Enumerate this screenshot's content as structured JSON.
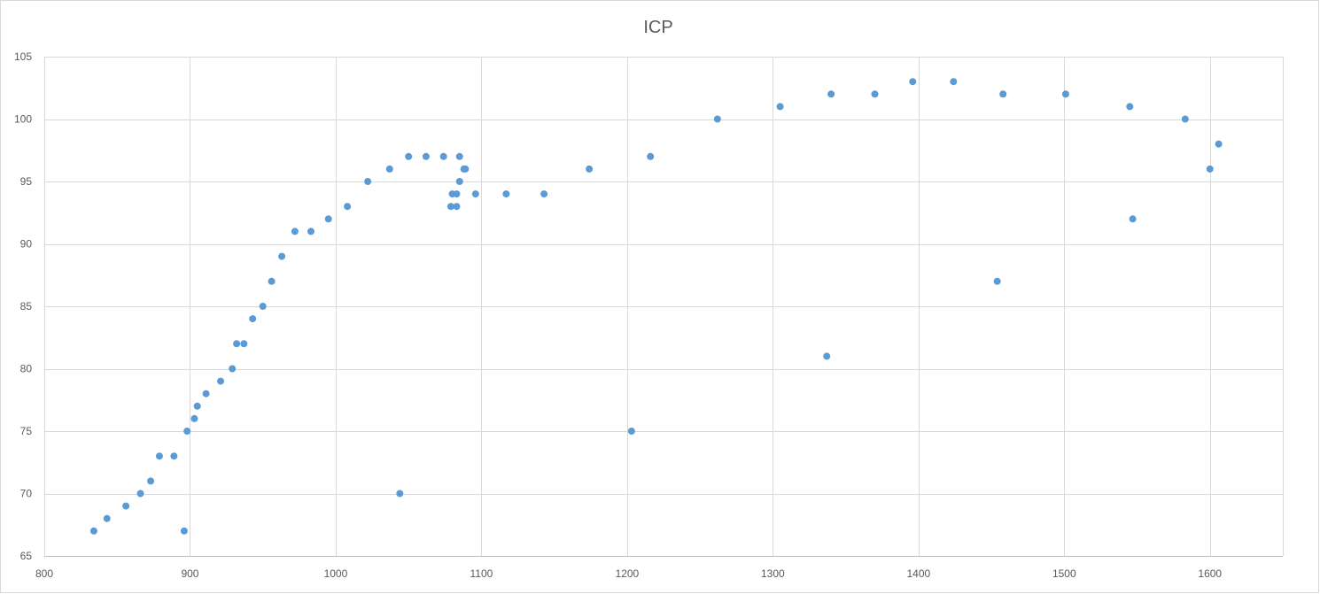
{
  "chart_data": {
    "type": "scatter",
    "title": "ICP",
    "xlabel": "",
    "ylabel": "",
    "xlim": [
      800,
      1650
    ],
    "ylim": [
      65,
      105
    ],
    "x_ticks": [
      800,
      900,
      1000,
      1100,
      1200,
      1300,
      1400,
      1500,
      1600
    ],
    "y_ticks": [
      65,
      70,
      75,
      80,
      85,
      90,
      95,
      100,
      105
    ],
    "grid": true,
    "legend": "none",
    "marker_color": "#5b9bd5",
    "series": [
      {
        "points": [
          [
            834,
            67
          ],
          [
            843,
            68
          ],
          [
            856,
            69
          ],
          [
            866,
            70
          ],
          [
            873,
            71
          ],
          [
            879,
            73
          ],
          [
            889,
            73
          ],
          [
            896,
            67
          ],
          [
            898,
            75
          ],
          [
            903,
            76
          ],
          [
            905,
            77
          ],
          [
            911,
            78
          ],
          [
            921,
            79
          ],
          [
            929,
            80
          ],
          [
            932,
            82
          ],
          [
            937,
            82
          ],
          [
            943,
            84
          ],
          [
            950,
            85
          ],
          [
            956,
            87
          ],
          [
            963,
            89
          ],
          [
            972,
            91
          ],
          [
            983,
            91
          ],
          [
            995,
            92
          ],
          [
            1008,
            93
          ],
          [
            1022,
            95
          ],
          [
            1037,
            96
          ],
          [
            1044,
            70
          ],
          [
            1050,
            97
          ],
          [
            1062,
            97
          ],
          [
            1074,
            97
          ],
          [
            1079,
            93
          ],
          [
            1080,
            94
          ],
          [
            1083,
            93
          ],
          [
            1083,
            94
          ],
          [
            1085,
            95
          ],
          [
            1085,
            97
          ],
          [
            1088,
            96
          ],
          [
            1089,
            96
          ],
          [
            1096,
            94
          ],
          [
            1117,
            94
          ],
          [
            1143,
            94
          ],
          [
            1174,
            96
          ],
          [
            1203,
            75
          ],
          [
            1216,
            97
          ],
          [
            1262,
            100
          ],
          [
            1305,
            101
          ],
          [
            1337,
            81
          ],
          [
            1340,
            102
          ],
          [
            1370,
            102
          ],
          [
            1396,
            103
          ],
          [
            1424,
            103
          ],
          [
            1454,
            87
          ],
          [
            1458,
            102
          ],
          [
            1501,
            102
          ],
          [
            1545,
            101
          ],
          [
            1547,
            92
          ],
          [
            1583,
            100
          ],
          [
            1600,
            96
          ],
          [
            1606,
            98
          ]
        ]
      }
    ]
  }
}
